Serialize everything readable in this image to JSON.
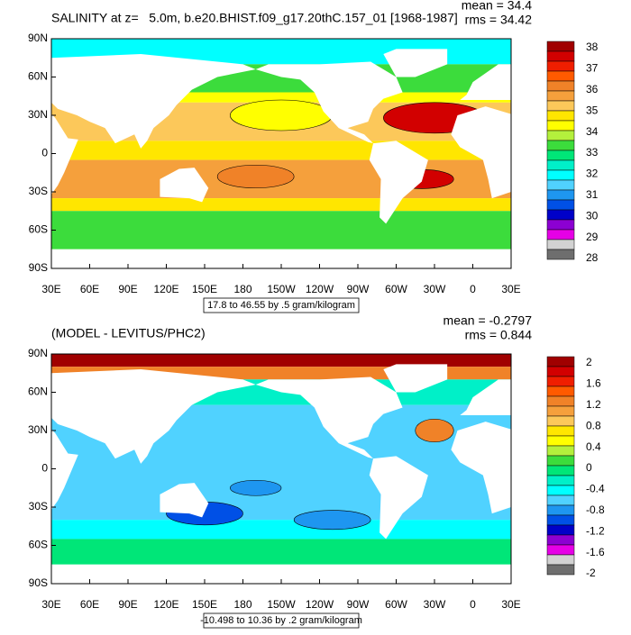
{
  "panels": [
    {
      "title": "SALINITY at z=   5.0m, b.e20.BHIST.f09_g17.20thC.157_01 [1968-1987]",
      "mean": "mean = 34.4",
      "rms": "rms = 34.42",
      "range_note": "17.8 to 46.55 by .5 gram/kilogram",
      "x_tick_labels": [
        "30E",
        "60E",
        "90E",
        "120E",
        "150E",
        "180",
        "150W",
        "120W",
        "90W",
        "60W",
        "30W",
        "0",
        "30E"
      ],
      "y_tick_labels": [
        "90N",
        "60N",
        "30N",
        "0",
        "30S",
        "60S",
        "90S"
      ],
      "colorbar_levels": [
        38,
        37,
        36,
        35,
        34,
        33,
        32,
        31,
        30,
        29,
        28
      ],
      "colorbar_colors": [
        "#a00000",
        "#d20000",
        "#f01e00",
        "#ff5a00",
        "#f08228",
        "#f5a03c",
        "#fcc85a",
        "#ffe600",
        "#ffff00",
        "#b4f03c",
        "#3cdc3c",
        "#00e678",
        "#00f0c8",
        "#00ffff",
        "#50d2ff",
        "#1e96f0",
        "#0050e6",
        "#0000c8",
        "#8c00d2",
        "#e600e6",
        "#d2d2d2",
        "#6e6e6e"
      ]
    },
    {
      "title": "(MODEL - LEVITUS/PHC2)",
      "mean": "mean = -0.2797",
      "rms": "rms = 0.844",
      "range_note": "-10.498 to 10.36 by .2 gram/kilogram",
      "x_tick_labels": [
        "30E",
        "60E",
        "90E",
        "120E",
        "150E",
        "180",
        "150W",
        "120W",
        "90W",
        "60W",
        "30W",
        "0",
        "30E"
      ],
      "y_tick_labels": [
        "90N",
        "60N",
        "30N",
        "0",
        "30S",
        "60S",
        "90S"
      ],
      "colorbar_levels": [
        2,
        1.6,
        1.2,
        0.8,
        0.4,
        0,
        -0.4,
        -0.8,
        -1.2,
        -1.6,
        -2
      ],
      "colorbar_colors": [
        "#a00000",
        "#d20000",
        "#f01e00",
        "#ff5a00",
        "#f08228",
        "#f5a03c",
        "#fcc85a",
        "#ffe600",
        "#ffff00",
        "#b4f03c",
        "#3cdc3c",
        "#00e678",
        "#00f0c8",
        "#00ffff",
        "#50d2ff",
        "#1e96f0",
        "#0050e6",
        "#0000c8",
        "#8c00d2",
        "#e600e6",
        "#d2d2d2",
        "#6e6e6e"
      ]
    }
  ]
}
